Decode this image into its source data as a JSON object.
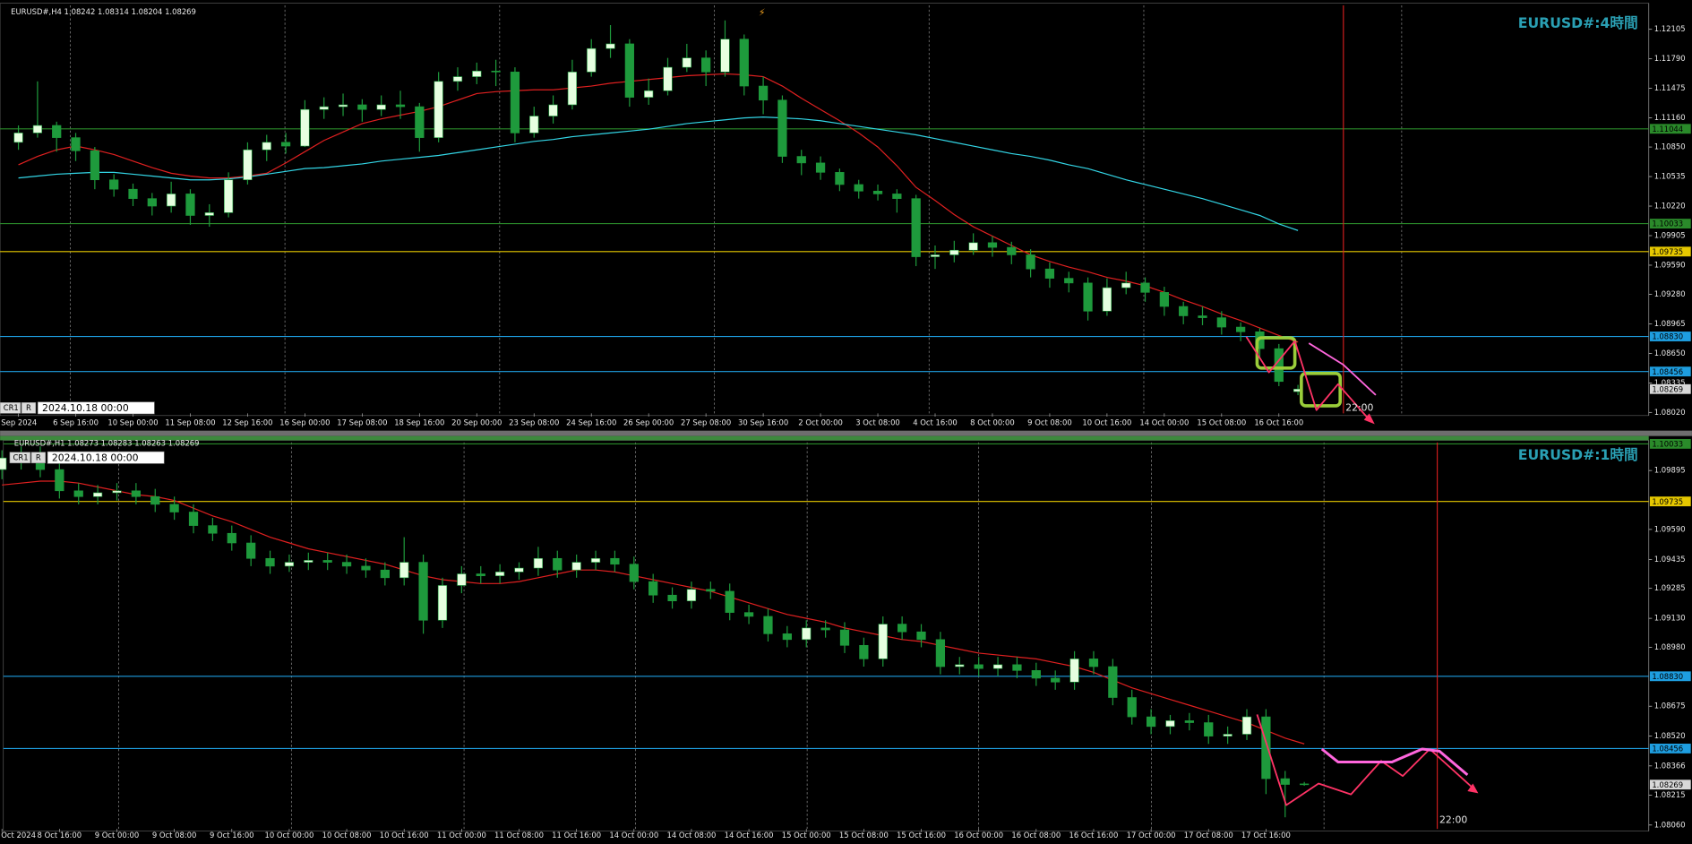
{
  "chart_data": [
    {
      "type": "candlestick",
      "title": "EURUSD#,H4 1.08242 1.08314 1.08204 1.08269",
      "watermark": "EURUSD#:4時間",
      "cursor": {
        "mode": "CR1",
        "flag": "R",
        "time": "2024.10.18 00:00"
      },
      "time_marker_label": "22:00",
      "up_color": "#e6ffe0",
      "down_color": "#1e9a3c",
      "wick_color": "#1e9a3c",
      "categories": [
        "Sep 2024",
        null,
        null,
        "6 Sep 16:00",
        null,
        null,
        "10 Sep 00:00",
        null,
        null,
        "11 Sep 08:00",
        null,
        null,
        "12 Sep 16:00",
        null,
        null,
        "16 Sep 00:00",
        null,
        null,
        "17 Sep 08:00",
        null,
        null,
        "18 Sep 16:00",
        null,
        null,
        "20 Sep 00:00",
        null,
        null,
        "23 Sep 08:00",
        null,
        null,
        "24 Sep 16:00",
        null,
        null,
        "26 Sep 00:00",
        null,
        null,
        "27 Sep 08:00",
        null,
        null,
        "30 Sep 16:00",
        null,
        null,
        "2 Oct 00:00",
        null,
        null,
        "3 Oct 08:00",
        null,
        null,
        "4 Oct 16:00",
        null,
        null,
        "8 Oct 00:00",
        null,
        null,
        "9 Oct 08:00",
        null,
        null,
        "10 Oct 16:00",
        null,
        null,
        "14 Oct 00:00",
        null,
        null,
        "15 Oct 08:00",
        null,
        null,
        "16 Oct 16:00",
        null
      ],
      "open": [
        1.109,
        1.11,
        1.1108,
        1.1095,
        1.1081,
        1.105,
        1.104,
        1.103,
        1.1022,
        1.1035,
        1.1012,
        1.1015,
        1.105,
        1.1082,
        1.109,
        1.1086,
        1.1125,
        1.1128,
        1.113,
        1.1125,
        1.113,
        1.1128,
        1.1095,
        1.1155,
        1.116,
        1.1166,
        1.1165,
        1.11,
        1.1118,
        1.113,
        1.1165,
        1.119,
        1.1195,
        1.1138,
        1.1145,
        1.117,
        1.118,
        1.1165,
        1.12,
        1.115,
        1.1135,
        1.1075,
        1.1068,
        1.1058,
        1.1045,
        1.1038,
        1.1035,
        1.103,
        1.0968,
        1.097,
        1.0975,
        1.0983,
        1.0978,
        1.097,
        1.0955,
        1.0945,
        1.094,
        1.091,
        1.0935,
        1.094,
        1.093,
        1.0915,
        1.0905,
        1.0903,
        1.0893,
        1.0888,
        1.087,
        1.08242
      ],
      "high": [
        1.1108,
        1.1155,
        1.1112,
        1.11,
        1.1085,
        1.1056,
        1.1046,
        1.1036,
        1.1048,
        1.104,
        1.1024,
        1.1058,
        1.109,
        1.1098,
        1.11,
        1.1135,
        1.1138,
        1.1142,
        1.1136,
        1.114,
        1.1145,
        1.1132,
        1.1165,
        1.117,
        1.1175,
        1.1178,
        1.117,
        1.1128,
        1.114,
        1.1178,
        1.12,
        1.1215,
        1.12,
        1.1158,
        1.118,
        1.1195,
        1.1188,
        1.122,
        1.1205,
        1.116,
        1.114,
        1.1082,
        1.1075,
        1.1062,
        1.105,
        1.1045,
        1.104,
        1.1034,
        1.098,
        1.0985,
        1.0993,
        1.099,
        1.0984,
        1.0976,
        1.0962,
        1.0952,
        1.0946,
        1.0945,
        1.0952,
        1.0946,
        1.0936,
        1.092,
        1.0915,
        1.091,
        1.0898,
        1.0892,
        1.0875,
        1.08314
      ],
      "low": [
        1.1082,
        1.1095,
        1.108,
        1.107,
        1.104,
        1.1032,
        1.1022,
        1.1012,
        1.1015,
        1.1002,
        1.1,
        1.101,
        1.1045,
        1.107,
        1.1078,
        1.1085,
        1.1115,
        1.1118,
        1.1112,
        1.1118,
        1.1115,
        1.108,
        1.109,
        1.1145,
        1.1152,
        1.115,
        1.109,
        1.1095,
        1.111,
        1.1125,
        1.116,
        1.118,
        1.1128,
        1.113,
        1.114,
        1.1165,
        1.115,
        1.116,
        1.114,
        1.112,
        1.1068,
        1.1055,
        1.105,
        1.1038,
        1.103,
        1.1028,
        1.1015,
        1.0958,
        1.0955,
        1.0962,
        1.097,
        1.0968,
        1.096,
        1.0946,
        1.0935,
        1.093,
        1.09,
        1.0905,
        1.0928,
        1.092,
        1.0905,
        1.0896,
        1.0895,
        1.0885,
        1.0878,
        1.086,
        1.083,
        1.08204
      ],
      "close": [
        1.11,
        1.1108,
        1.1095,
        1.1081,
        1.105,
        1.104,
        1.103,
        1.1022,
        1.1035,
        1.1012,
        1.1015,
        1.105,
        1.1082,
        1.109,
        1.1086,
        1.1125,
        1.1128,
        1.113,
        1.1125,
        1.113,
        1.1128,
        1.1095,
        1.1155,
        1.116,
        1.1166,
        1.1165,
        1.11,
        1.1118,
        1.113,
        1.1165,
        1.119,
        1.1195,
        1.1138,
        1.1145,
        1.117,
        1.118,
        1.1165,
        1.12,
        1.115,
        1.1135,
        1.1075,
        1.1068,
        1.1058,
        1.1045,
        1.1038,
        1.1035,
        1.103,
        1.0968,
        1.097,
        1.0975,
        1.0983,
        1.0978,
        1.097,
        1.0955,
        1.0945,
        1.094,
        1.091,
        1.0935,
        1.094,
        1.093,
        1.0915,
        1.0905,
        1.0903,
        1.0893,
        1.0888,
        1.087,
        1.0835,
        1.08269
      ],
      "series": [
        {
          "color": "#e02020",
          "values": [
            1.1066,
            1.1075,
            1.1082,
            1.1086,
            1.1082,
            1.1077,
            1.107,
            1.1063,
            1.1057,
            1.1054,
            1.1052,
            1.1052,
            1.1054,
            1.1057,
            1.1068,
            1.108,
            1.1092,
            1.1101,
            1.111,
            1.1115,
            1.1119,
            1.1123,
            1.1128,
            1.1135,
            1.1142,
            1.1144,
            1.1145,
            1.1146,
            1.1146,
            1.1148,
            1.115,
            1.1153,
            1.1155,
            1.1157,
            1.1159,
            1.1161,
            1.1162,
            1.1163,
            1.1162,
            1.116,
            1.115,
            1.1137,
            1.1125,
            1.1113,
            1.11,
            1.1085,
            1.1065,
            1.1042,
            1.1028,
            1.1013,
            1.1,
            1.099,
            1.098,
            1.097,
            1.0963,
            1.0957,
            1.0952,
            1.0946,
            1.0942,
            1.0937,
            1.093,
            1.0922,
            1.0915,
            1.0907,
            1.09,
            1.0892,
            1.0884,
            1.0877
          ]
        },
        {
          "color": "#33d6e6",
          "values": [
            1.1052,
            1.1054,
            1.1056,
            1.1057,
            1.1058,
            1.1058,
            1.1056,
            1.1054,
            1.1052,
            1.105,
            1.105,
            1.1051,
            1.1053,
            1.1056,
            1.1059,
            1.1062,
            1.1063,
            1.1065,
            1.1067,
            1.107,
            1.1072,
            1.1074,
            1.1076,
            1.1079,
            1.1082,
            1.1085,
            1.1088,
            1.1091,
            1.1093,
            1.1096,
            1.1098,
            1.11,
            1.1102,
            1.1104,
            1.1107,
            1.111,
            1.1112,
            1.1114,
            1.1116,
            1.1117,
            1.1116,
            1.1115,
            1.1113,
            1.111,
            1.1107,
            1.1104,
            1.1101,
            1.1098,
            1.1094,
            1.109,
            1.1086,
            1.1082,
            1.1078,
            1.1075,
            1.1071,
            1.1066,
            1.1062,
            1.1056,
            1.105,
            1.1045,
            1.104,
            1.1035,
            1.103,
            1.1024,
            1.1018,
            1.1012,
            1.1003,
            1.0996
          ]
        }
      ],
      "ylim": [
        1.0801,
        1.1236
      ],
      "yticks": [
        1.12105,
        {
          "value": 1.1179,
          "label": "1.11790"
        },
        1.11475,
        {
          "value": 1.1116,
          "label": "1.11160"
        },
        {
          "value": 1.1085,
          "label": "1.10850"
        },
        1.10535,
        {
          "value": 1.1022,
          "label": "1.10220"
        },
        1.09905,
        {
          "value": 1.0959,
          "label": "1.09590"
        },
        {
          "value": 1.0928,
          "label": "1.09280"
        },
        1.08965,
        {
          "value": 1.0865,
          "label": "1.08650"
        },
        1.08335,
        {
          "value": 1.0802,
          "label": "1.08020"
        }
      ],
      "levels": {
        "values": [
          1.11044,
          1.10033,
          1.09735,
          1.0883,
          1.08456
        ],
        "value_labels": [
          "1.11044",
          "1.10033",
          "1.09735",
          "1.08830",
          "1.08456"
        ],
        "colors": [
          "#2a8a2a",
          "#2a8a2a",
          "#e6c800",
          "#1e9ee0",
          "#1e9ee0"
        ]
      }
    },
    {
      "type": "candlestick",
      "title": "EURUSD#,H1 1.08273 1.08283 1.08263 1.08269",
      "watermark": "EURUSD#:1時間",
      "cursor": {
        "mode": "CR1",
        "flag": "R",
        "time": "2024.10.18 00:00"
      },
      "time_marker_label": "22:00",
      "up_color": "#e6ffe0",
      "down_color": "#1e9a3c",
      "wick_color": "#1e9a3c",
      "categories": [
        "Oct 2024",
        null,
        null,
        "8 Oct 16:00",
        null,
        null,
        "9 Oct 00:00",
        null,
        null,
        "9 Oct 08:00",
        null,
        null,
        "9 Oct 16:00",
        null,
        null,
        "10 Oct 00:00",
        null,
        null,
        "10 Oct 08:00",
        null,
        null,
        "10 Oct 16:00",
        null,
        null,
        "11 Oct 00:00",
        null,
        null,
        "11 Oct 08:00",
        null,
        null,
        "11 Oct 16:00",
        null,
        null,
        "14 Oct 00:00",
        null,
        null,
        "14 Oct 08:00",
        null,
        null,
        "14 Oct 16:00",
        null,
        null,
        "15 Oct 00:00",
        null,
        null,
        "15 Oct 08:00",
        null,
        null,
        "15 Oct 16:00",
        null,
        null,
        "16 Oct 00:00",
        null,
        null,
        "16 Oct 08:00",
        null,
        null,
        "16 Oct 16:00",
        null,
        null,
        "17 Oct 00:00",
        null,
        null,
        "17 Oct 08:00",
        null,
        null,
        "17 Oct 16:00",
        null,
        null
      ],
      "open": [
        1.099,
        1.0996,
        1.0998,
        1.099,
        1.0979,
        1.0976,
        1.0978,
        1.0979,
        1.0976,
        1.0972,
        1.0968,
        1.0961,
        1.0957,
        1.0952,
        1.0944,
        1.094,
        1.0942,
        1.0943,
        1.0942,
        1.094,
        1.0938,
        1.0934,
        1.0942,
        1.0912,
        1.093,
        1.0936,
        1.0935,
        1.0937,
        1.0939,
        1.0944,
        1.0938,
        1.0942,
        1.0944,
        1.0941,
        1.0932,
        1.0925,
        1.0922,
        1.0928,
        1.0927,
        1.0916,
        1.0914,
        1.0905,
        1.0902,
        1.0908,
        1.0907,
        1.0899,
        1.0892,
        1.091,
        1.0906,
        1.0902,
        1.0888,
        1.0889,
        1.0887,
        1.0889,
        1.0886,
        1.0882,
        1.088,
        1.0892,
        1.0888,
        1.0872,
        1.0862,
        1.0857,
        1.086,
        1.0859,
        1.0852,
        1.0853,
        1.0862,
        1.083,
        1.08273
      ],
      "high": [
        1.1,
        1.1002,
        1.1002,
        1.0994,
        1.0983,
        1.0982,
        1.0983,
        1.0983,
        1.098,
        1.0976,
        1.0972,
        1.0965,
        1.0961,
        1.0956,
        1.0948,
        1.0946,
        1.0947,
        1.0947,
        1.0946,
        1.0944,
        1.0942,
        1.0955,
        1.0946,
        1.0934,
        1.094,
        1.094,
        1.0941,
        1.0942,
        1.095,
        1.0948,
        1.0946,
        1.0948,
        1.0948,
        1.0945,
        1.0936,
        1.0929,
        1.0932,
        1.0932,
        1.0931,
        1.092,
        1.0918,
        1.0909,
        1.0912,
        1.0912,
        1.0911,
        1.0903,
        1.0914,
        1.0914,
        1.091,
        1.0906,
        1.0893,
        1.0893,
        1.0893,
        1.0893,
        1.089,
        1.0886,
        1.0896,
        1.0896,
        1.0892,
        1.0876,
        1.0866,
        1.0863,
        1.0864,
        1.0863,
        1.0857,
        1.0866,
        1.0866,
        1.0834,
        1.08283
      ],
      "low": [
        1.0985,
        1.099,
        1.0986,
        1.0975,
        1.0972,
        1.0972,
        1.0974,
        1.0972,
        1.0968,
        1.0964,
        1.0957,
        1.0953,
        1.0948,
        1.094,
        1.0936,
        1.0937,
        1.0938,
        1.0938,
        1.0936,
        1.0934,
        1.093,
        1.093,
        1.0905,
        1.0908,
        1.0926,
        1.0931,
        1.0931,
        1.0933,
        1.0935,
        1.0934,
        1.0934,
        1.0938,
        1.0937,
        1.0928,
        1.0921,
        1.0918,
        1.0918,
        1.0923,
        1.0912,
        1.091,
        1.0901,
        1.0898,
        1.0898,
        1.0903,
        1.0895,
        1.0888,
        1.0888,
        1.0902,
        1.0898,
        1.0884,
        1.0884,
        1.0883,
        1.0883,
        1.0882,
        1.0878,
        1.0876,
        1.0876,
        1.0884,
        1.0868,
        1.0858,
        1.0853,
        1.0853,
        1.0855,
        1.0848,
        1.0848,
        1.085,
        1.0822,
        1.081,
        1.08263
      ],
      "close": [
        1.0996,
        1.0998,
        1.099,
        1.0979,
        1.0976,
        1.0978,
        1.0979,
        1.0976,
        1.0972,
        1.0968,
        1.0961,
        1.0957,
        1.0952,
        1.0944,
        1.094,
        1.0942,
        1.0943,
        1.0942,
        1.094,
        1.0938,
        1.0934,
        1.0942,
        1.0912,
        1.093,
        1.0936,
        1.0935,
        1.0937,
        1.0939,
        1.0944,
        1.0938,
        1.0942,
        1.0944,
        1.0941,
        1.0932,
        1.0925,
        1.0922,
        1.0928,
        1.0927,
        1.0916,
        1.0914,
        1.0905,
        1.0902,
        1.0908,
        1.0907,
        1.0899,
        1.0892,
        1.091,
        1.0906,
        1.0902,
        1.0888,
        1.0889,
        1.0887,
        1.0889,
        1.0886,
        1.0882,
        1.088,
        1.0892,
        1.0888,
        1.0872,
        1.0862,
        1.0857,
        1.086,
        1.0859,
        1.0852,
        1.0853,
        1.0862,
        1.083,
        1.0827,
        1.08269
      ],
      "series": [
        {
          "color": "#e02020",
          "values": [
            1.0982,
            1.0983,
            1.0984,
            1.0984,
            1.0983,
            1.0981,
            1.0979,
            1.0977,
            1.0976,
            1.0974,
            1.097,
            1.0966,
            1.0963,
            1.0959,
            1.0955,
            1.0952,
            1.0949,
            1.0947,
            1.0945,
            1.0943,
            1.0941,
            1.0938,
            1.0935,
            1.0933,
            1.0932,
            1.0931,
            1.0931,
            1.0932,
            1.0934,
            1.0936,
            1.0938,
            1.0938,
            1.0937,
            1.0935,
            1.0933,
            1.0931,
            1.0929,
            1.0927,
            1.0924,
            1.0921,
            1.0918,
            1.0915,
            1.0913,
            1.0911,
            1.0908,
            1.0906,
            1.0904,
            1.0902,
            1.0901,
            1.0899,
            1.0897,
            1.0895,
            1.0894,
            1.0893,
            1.0892,
            1.089,
            1.0888,
            1.0885,
            1.0881,
            1.0877,
            1.0874,
            1.0871,
            1.0868,
            1.0865,
            1.0862,
            1.0859,
            1.0855,
            1.0851,
            1.0848
          ]
        }
      ],
      "ylim": [
        1.0804,
        1.1004
      ],
      "yticks": [
        1.09895,
        {
          "value": 1.0959,
          "label": "1.09590"
        },
        1.09435,
        1.09285,
        {
          "value": 1.0913,
          "label": "1.09130"
        },
        {
          "value": 1.0898,
          "label": "1.08980"
        },
        1.08675,
        {
          "value": 1.0852,
          "label": "1.08520"
        },
        1.08366,
        1.08215,
        {
          "value": 1.0806,
          "label": "1.08060"
        }
      ],
      "levels": {
        "values": [
          1.10033,
          1.09735,
          1.0883,
          1.08456
        ],
        "value_labels": [
          "1.10033",
          "1.09735",
          "1.08830",
          "1.08456"
        ],
        "colors": [
          "#2a8a2a",
          "#e6c800",
          "#1e9ee0",
          "#1e9ee0"
        ]
      }
    }
  ]
}
